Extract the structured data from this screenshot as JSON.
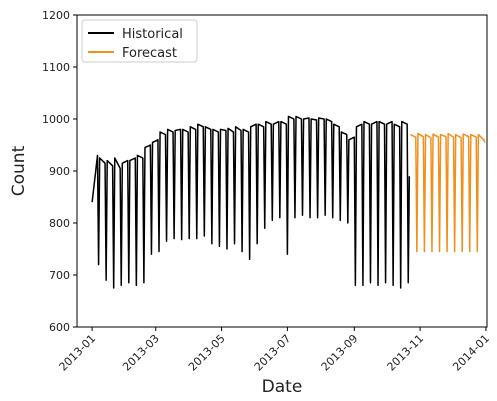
{
  "chart_data": {
    "type": "line",
    "x_label": "Date",
    "y_label": "Count",
    "xlim": [
      "2012-12-18",
      "2014-01-02"
    ],
    "ylim": [
      600,
      1200
    ],
    "yticks": [
      600,
      700,
      800,
      900,
      1000,
      1100,
      1200
    ],
    "xticks": [
      {
        "value": "2013-01-01",
        "label": "2013-01"
      },
      {
        "value": "2013-03-01",
        "label": "2013-03"
      },
      {
        "value": "2013-05-01",
        "label": "2013-05"
      },
      {
        "value": "2013-07-01",
        "label": "2013-07"
      },
      {
        "value": "2013-09-01",
        "label": "2013-09"
      },
      {
        "value": "2013-11-01",
        "label": "2013-11"
      },
      {
        "value": "2014-01-01",
        "label": "2014-01"
      }
    ],
    "legend_position": "upper left",
    "series": [
      {
        "name": "Historical",
        "color": "#000000",
        "x": [
          "2013-01-01",
          "2013-01-06",
          "2013-01-07",
          "2013-01-08",
          "2013-01-13",
          "2013-01-14",
          "2013-01-15",
          "2013-01-20",
          "2013-01-21",
          "2013-01-22",
          "2013-01-27",
          "2013-01-28",
          "2013-01-29",
          "2013-02-03",
          "2013-02-04",
          "2013-02-05",
          "2013-02-10",
          "2013-02-11",
          "2013-02-12",
          "2013-02-17",
          "2013-02-18",
          "2013-02-19",
          "2013-02-24",
          "2013-02-25",
          "2013-02-26",
          "2013-03-03",
          "2013-03-04",
          "2013-03-05",
          "2013-03-10",
          "2013-03-11",
          "2013-03-12",
          "2013-03-17",
          "2013-03-18",
          "2013-03-19",
          "2013-03-24",
          "2013-03-25",
          "2013-03-26",
          "2013-03-31",
          "2013-04-01",
          "2013-04-02",
          "2013-04-07",
          "2013-04-08",
          "2013-04-09",
          "2013-04-14",
          "2013-04-15",
          "2013-04-16",
          "2013-04-21",
          "2013-04-22",
          "2013-04-23",
          "2013-04-28",
          "2013-04-29",
          "2013-04-30",
          "2013-05-05",
          "2013-05-06",
          "2013-05-07",
          "2013-05-12",
          "2013-05-13",
          "2013-05-14",
          "2013-05-19",
          "2013-05-20",
          "2013-05-21",
          "2013-05-26",
          "2013-05-27",
          "2013-05-28",
          "2013-06-02",
          "2013-06-03",
          "2013-06-04",
          "2013-06-09",
          "2013-06-10",
          "2013-06-11",
          "2013-06-16",
          "2013-06-17",
          "2013-06-18",
          "2013-06-23",
          "2013-06-24",
          "2013-06-25",
          "2013-06-30",
          "2013-07-01",
          "2013-07-02",
          "2013-07-07",
          "2013-07-08",
          "2013-07-09",
          "2013-07-14",
          "2013-07-15",
          "2013-07-16",
          "2013-07-21",
          "2013-07-22",
          "2013-07-23",
          "2013-07-28",
          "2013-07-29",
          "2013-07-30",
          "2013-08-04",
          "2013-08-05",
          "2013-08-06",
          "2013-08-11",
          "2013-08-12",
          "2013-08-13",
          "2013-08-18",
          "2013-08-19",
          "2013-08-20",
          "2013-08-25",
          "2013-08-26",
          "2013-08-27",
          "2013-09-01",
          "2013-09-02",
          "2013-09-03",
          "2013-09-08",
          "2013-09-09",
          "2013-09-10",
          "2013-09-15",
          "2013-09-16",
          "2013-09-17",
          "2013-09-22",
          "2013-09-23",
          "2013-09-24",
          "2013-09-29",
          "2013-09-30",
          "2013-10-01",
          "2013-10-06",
          "2013-10-07",
          "2013-10-08",
          "2013-10-13",
          "2013-10-14",
          "2013-10-15",
          "2013-10-20",
          "2013-10-21",
          "2013-10-22"
        ],
        "values": [
          840,
          930,
          720,
          925,
          915,
          690,
          920,
          910,
          675,
          925,
          905,
          680,
          915,
          920,
          685,
          920,
          925,
          680,
          930,
          925,
          685,
          945,
          950,
          740,
          955,
          960,
          745,
          975,
          970,
          765,
          980,
          975,
          770,
          978,
          980,
          768,
          980,
          975,
          770,
          985,
          980,
          770,
          990,
          985,
          775,
          985,
          980,
          760,
          980,
          975,
          755,
          980,
          978,
          750,
          982,
          975,
          760,
          985,
          978,
          745,
          980,
          975,
          730,
          985,
          990,
          760,
          990,
          985,
          790,
          995,
          990,
          805,
          990,
          995,
          810,
          995,
          990,
          740,
          1005,
          1000,
          810,
          1005,
          1000,
          815,
          1000,
          1002,
          810,
          1000,
          998,
          810,
          1002,
          1000,
          815,
          1000,
          995,
          810,
          990,
          985,
          805,
          975,
          970,
          800,
          960,
          965,
          680,
          985,
          990,
          680,
          995,
          990,
          685,
          990,
          995,
          680,
          995,
          990,
          685,
          990,
          995,
          680,
          990,
          985,
          675,
          995,
          990,
          685,
          890
        ]
      },
      {
        "name": "Forecast",
        "color": "#f28e1c",
        "x": [
          "2013-10-23",
          "2013-10-28",
          "2013-10-29",
          "2013-10-30",
          "2013-11-04",
          "2013-11-05",
          "2013-11-06",
          "2013-11-11",
          "2013-11-12",
          "2013-11-13",
          "2013-11-18",
          "2013-11-19",
          "2013-11-20",
          "2013-11-25",
          "2013-11-26",
          "2013-11-27",
          "2013-12-02",
          "2013-12-03",
          "2013-12-04",
          "2013-12-09",
          "2013-12-10",
          "2013-12-11",
          "2013-12-16",
          "2013-12-17",
          "2013-12-18",
          "2013-12-23",
          "2013-12-24",
          "2013-12-25",
          "2013-12-30",
          "2013-12-31"
        ],
        "values": [
          970,
          965,
          745,
          972,
          966,
          745,
          970,
          964,
          745,
          971,
          965,
          745,
          970,
          966,
          745,
          972,
          965,
          745,
          970,
          964,
          745,
          971,
          966,
          745,
          970,
          965,
          745,
          970,
          960,
          955
        ]
      }
    ]
  }
}
